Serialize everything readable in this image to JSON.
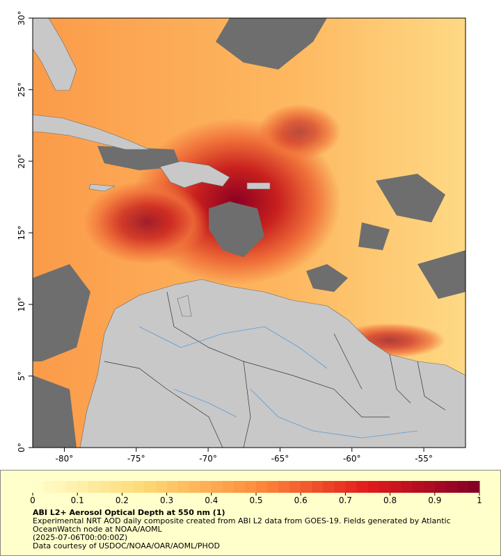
{
  "map": {
    "xlim": [
      -82.2,
      -52.1
    ],
    "ylim": [
      0,
      30
    ],
    "xticks": [
      {
        "value": -80,
        "label": "-80°"
      },
      {
        "value": -75,
        "label": "-75°"
      },
      {
        "value": -70,
        "label": "-70°"
      },
      {
        "value": -65,
        "label": "-65°"
      },
      {
        "value": -60,
        "label": "-60°"
      },
      {
        "value": -55,
        "label": "-55°"
      }
    ],
    "yticks": [
      {
        "value": 0,
        "label": "0°"
      },
      {
        "value": 5,
        "label": "5°"
      },
      {
        "value": 10,
        "label": "10°"
      },
      {
        "value": 15,
        "label": "15°"
      },
      {
        "value": 20,
        "label": "20°"
      },
      {
        "value": 25,
        "label": "25°"
      },
      {
        "value": 30,
        "label": "30°"
      }
    ]
  },
  "colorbar": {
    "range": [
      0,
      1
    ],
    "ticks": [
      0,
      0.1,
      0.2,
      0.3,
      0.4,
      0.5,
      0.6,
      0.7,
      0.8,
      0.9,
      1
    ]
  },
  "caption": {
    "title": "ABI L2+ Aerosol Optical Depth at 550 nm (1)",
    "description": "Experimental NRT AOD daily composite created from ABI L2 data from GOES-19. Fields generated by Atlantic OceanWatch node at NOAA/AOML",
    "date": "(2025-07-06T00:00:00Z)",
    "credit": "Data courtesy of USDOC/NOAA/OAR/AOML/PHOD"
  }
}
